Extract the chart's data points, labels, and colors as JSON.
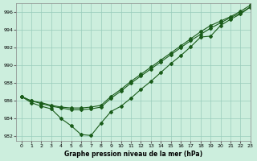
{
  "title": "Graphe pression niveau de la mer (hPa)",
  "bg_color": "#cceedd",
  "grid_color": "#99ccbb",
  "line_color": "#1a5c1a",
  "xlim": [
    -0.5,
    23
  ],
  "ylim": [
    981.5,
    997
  ],
  "yticks": [
    982,
    984,
    986,
    988,
    990,
    992,
    994,
    996
  ],
  "xticks": [
    0,
    1,
    2,
    3,
    4,
    5,
    6,
    7,
    8,
    9,
    10,
    11,
    12,
    13,
    14,
    15,
    16,
    17,
    18,
    19,
    20,
    21,
    22,
    23
  ],
  "line1": [
    986.5,
    986.0,
    985.8,
    985.5,
    985.3,
    985.2,
    985.2,
    985.3,
    985.5,
    986.5,
    987.3,
    988.2,
    989.0,
    989.8,
    990.6,
    991.4,
    992.2,
    993.0,
    993.8,
    994.5,
    995.0,
    995.5,
    996.1,
    996.8
  ],
  "line2": [
    986.5,
    986.0,
    985.7,
    985.4,
    985.2,
    985.0,
    985.0,
    985.1,
    985.3,
    986.3,
    987.1,
    988.0,
    988.8,
    989.6,
    990.4,
    991.2,
    992.0,
    992.8,
    993.5,
    994.2,
    994.8,
    995.4,
    995.9,
    996.6
  ],
  "line3": [
    986.5,
    985.8,
    985.4,
    985.1,
    984.0,
    983.2,
    982.2,
    982.1,
    983.5,
    984.8,
    985.4,
    986.3,
    987.3,
    988.2,
    989.2,
    990.2,
    991.1,
    992.1,
    993.2,
    993.3,
    994.5,
    995.2,
    995.8,
    996.6
  ]
}
